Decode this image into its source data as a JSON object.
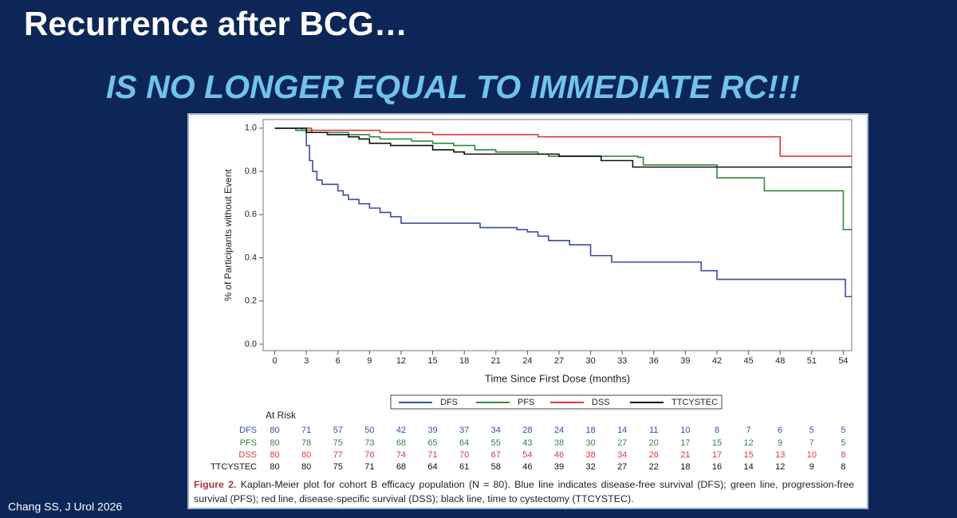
{
  "slide": {
    "title": "Recurrence after BCG…",
    "subtitle": "IS NO LONGER EQUAL TO IMMEDIATE RC!!!",
    "citation": "Chang SS, J Urol 2026"
  },
  "chart_data": {
    "type": "step",
    "x_label": "Time Since First Dose (months)",
    "y_label": "% of Participants without Event",
    "xlim": [
      -1.1,
      54.8
    ],
    "ylim": [
      -0.03,
      1.04
    ],
    "xticks": [
      0,
      3,
      6,
      9,
      12,
      15,
      18,
      21,
      24,
      27,
      30,
      33,
      36,
      39,
      42,
      45,
      48,
      51,
      54
    ],
    "yticks": [
      {
        "value": 0,
        "label": "0.0"
      },
      0.2,
      0.4,
      0.6,
      0.8,
      {
        "value": 1,
        "label": "1.0"
      }
    ],
    "grid": false,
    "legend": "bottom",
    "series": [
      {
        "name": "DFS",
        "color": "#3b4da3",
        "x": [
          0,
          2.6,
          3,
          3.3,
          3.6,
          4,
          4.5,
          6,
          6.5,
          7,
          8,
          9,
          10,
          11,
          12,
          19.5,
          23,
          24,
          25,
          26,
          28,
          30,
          32,
          40.5,
          42,
          54.2,
          54.8
        ],
        "y": [
          1,
          0.99,
          0.92,
          0.85,
          0.8,
          0.76,
          0.74,
          0.71,
          0.69,
          0.67,
          0.65,
          0.63,
          0.61,
          0.59,
          0.56,
          0.54,
          0.53,
          0.52,
          0.5,
          0.48,
          0.46,
          0.41,
          0.38,
          0.34,
          0.3,
          0.22,
          0.22
        ]
      },
      {
        "name": "PFS",
        "color": "#2f8a3c",
        "x": [
          0,
          2,
          3.5,
          7,
          9,
          10,
          13,
          15,
          17,
          19,
          21,
          25,
          26,
          34.5,
          35,
          42,
          46.5,
          54,
          54.8
        ],
        "y": [
          1,
          0.99,
          0.98,
          0.97,
          0.96,
          0.95,
          0.94,
          0.93,
          0.92,
          0.9,
          0.89,
          0.88,
          0.87,
          0.865,
          0.83,
          0.77,
          0.71,
          0.53,
          0.53
        ]
      },
      {
        "name": "DSS",
        "color": "#e0383d",
        "x": [
          0,
          3.5,
          10,
          15,
          25,
          48,
          54.8
        ],
        "y": [
          1,
          0.99,
          0.98,
          0.97,
          0.96,
          0.87,
          0.87
        ]
      },
      {
        "name": "TTCYSTEC",
        "color": "#111111",
        "x": [
          0,
          3,
          5,
          7,
          8,
          9,
          11,
          15,
          17,
          18,
          27,
          31,
          34,
          54.8
        ],
        "y": [
          1,
          0.98,
          0.97,
          0.96,
          0.95,
          0.93,
          0.92,
          0.9,
          0.89,
          0.88,
          0.87,
          0.85,
          0.82,
          0.82
        ]
      }
    ],
    "at_risk": {
      "title": "At Risk",
      "rows": [
        [
          80,
          71,
          57,
          50,
          42,
          39,
          37,
          34,
          28,
          24,
          18,
          14,
          11,
          10,
          8,
          7,
          6,
          5,
          5
        ],
        [
          80,
          78,
          75,
          73,
          68,
          65,
          64,
          55,
          43,
          38,
          30,
          27,
          20,
          17,
          15,
          12,
          9,
          7,
          5
        ],
        [
          80,
          80,
          77,
          76,
          74,
          71,
          70,
          67,
          54,
          46,
          38,
          34,
          26,
          21,
          17,
          15,
          13,
          10,
          8
        ],
        [
          80,
          80,
          75,
          71,
          68,
          64,
          61,
          58,
          46,
          39,
          32,
          27,
          22,
          18,
          16,
          14,
          12,
          9,
          8
        ]
      ]
    },
    "caption": {
      "label": "Figure 2.",
      "text": "Kaplan-Meier plot for cohort B efficacy population (N = 80). Blue line indicates disease-free survival (DFS); green line, progression-free survival (PFS); red line, disease-specific survival (DSS); black line, time to cystectomy (TTCYSTEC)."
    }
  }
}
